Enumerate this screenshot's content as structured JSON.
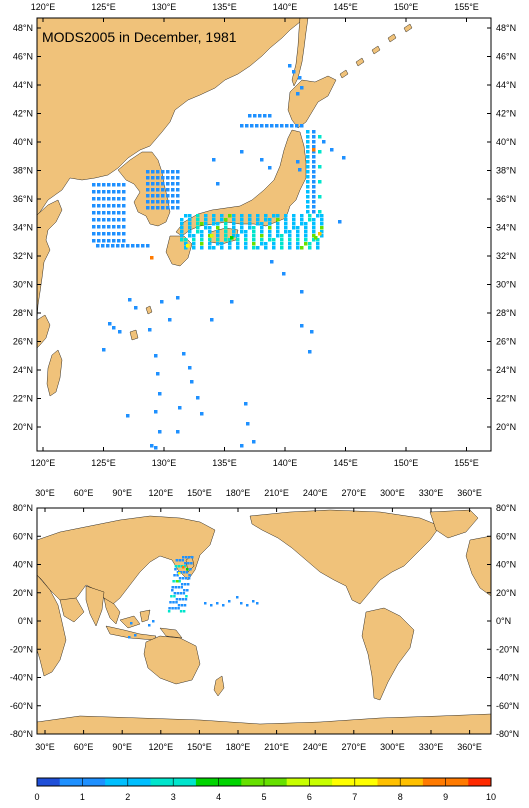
{
  "title": "MODS2005 in December, 1981",
  "colors": {
    "land": "#f0c27a",
    "ocean": "#ffffff",
    "frame": "#000000"
  },
  "map_top": {
    "region": "Northwest Pacific / Japan",
    "lon_ticks": [
      "120°E",
      "125°E",
      "130°E",
      "135°E",
      "140°E",
      "145°E",
      "150°E",
      "155°E"
    ],
    "lat_ticks": [
      "48°N",
      "46°N",
      "44°N",
      "42°N",
      "40°N",
      "38°N",
      "36°N",
      "34°N",
      "32°N",
      "30°N",
      "28°N",
      "26°N",
      "24°N",
      "22°N",
      "20°N"
    ]
  },
  "map_bottom": {
    "region": "Global",
    "lon_ticks": [
      "30°E",
      "60°E",
      "90°E",
      "120°E",
      "150°E",
      "180°E",
      "210°E",
      "240°E",
      "270°E",
      "300°E",
      "330°E",
      "360°E"
    ],
    "lat_ticks": [
      "80°N",
      "60°N",
      "40°N",
      "20°N",
      "0°N",
      "-20°N",
      "-40°N",
      "-60°N",
      "-80°N"
    ]
  },
  "colorbar": {
    "ticks": [
      "0",
      "1",
      "2",
      "3",
      "4",
      "5",
      "6",
      "7",
      "8",
      "9",
      "10"
    ],
    "colors": [
      "#1f4fd8",
      "#1e90ff",
      "#00bfff",
      "#00e5cc",
      "#00d400",
      "#66e000",
      "#c8ff00",
      "#ffff00",
      "#ffc000",
      "#ff7a00",
      "#ff2a00"
    ]
  }
}
